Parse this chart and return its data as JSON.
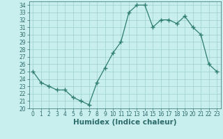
{
  "x": [
    0,
    1,
    2,
    3,
    4,
    5,
    6,
    7,
    8,
    9,
    10,
    11,
    12,
    13,
    14,
    15,
    16,
    17,
    18,
    19,
    20,
    21,
    22,
    23
  ],
  "y": [
    25.0,
    23.5,
    23.0,
    22.5,
    22.5,
    21.5,
    21.0,
    20.5,
    23.5,
    25.5,
    27.5,
    29.0,
    33.0,
    34.0,
    34.0,
    31.0,
    32.0,
    32.0,
    31.5,
    32.5,
    31.0,
    30.0,
    26.0,
    25.0
  ],
  "line_color": "#2e7d6e",
  "marker": "+",
  "bg_color": "#c8eeee",
  "grid_color": "#9ecece",
  "xlabel": "Humidex (Indice chaleur)",
  "ylim": [
    20,
    34.5
  ],
  "xlim": [
    -0.5,
    23.5
  ],
  "yticks": [
    20,
    21,
    22,
    23,
    24,
    25,
    26,
    27,
    28,
    29,
    30,
    31,
    32,
    33,
    34
  ],
  "xticks": [
    0,
    1,
    2,
    3,
    4,
    5,
    6,
    7,
    8,
    9,
    10,
    11,
    12,
    13,
    14,
    15,
    16,
    17,
    18,
    19,
    20,
    21,
    22,
    23
  ],
  "tick_color": "#2e6b6b",
  "font_color": "#2e6b6b",
  "xlabel_fontsize": 7.5,
  "tick_fontsize": 5.5,
  "linewidth": 0.9,
  "markersize": 4,
  "markerwidth": 1.0
}
